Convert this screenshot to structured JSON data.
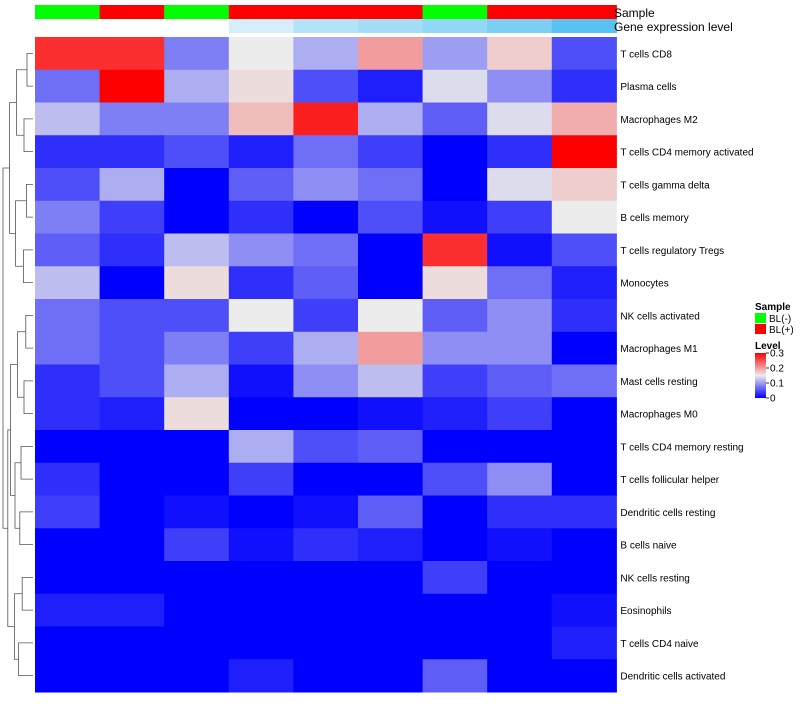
{
  "chart_data": {
    "type": "heatmap",
    "title": "",
    "value_scale": {
      "min": 0,
      "max": 0.3,
      "colors": {
        "low": "#0000ff",
        "mid": "#ececec",
        "high": "#ff0000"
      }
    },
    "annotations": {
      "sample_label": "Sample",
      "gene_label": "Gene expression level",
      "sample_groups": [
        "BL(-)",
        "BL(+)",
        "BL(-)",
        "BL(+)",
        "BL(+)",
        "BL(+)",
        "BL(-)",
        "BL(+)",
        "BL(+)"
      ],
      "gene_expression_colors": [
        "#ffffff",
        "#ffffff",
        "#ffffff",
        "#d5eef9",
        "#b3e3f7",
        "#a4ddf6",
        "#92d7f5",
        "#7ccff4",
        "#58c3f1"
      ]
    },
    "legend": {
      "position": "right",
      "sample": {
        "title": "Sample",
        "entries": [
          {
            "label": "BL(-)",
            "color": "#00ff00"
          },
          {
            "label": "BL(+)",
            "color": "#ff0000"
          }
        ]
      },
      "level": {
        "title": "Level",
        "ticks": [
          "0",
          "0.1",
          "0.2",
          "0.3"
        ],
        "tick_values": [
          0,
          0.1,
          0.2,
          0.3
        ]
      }
    },
    "rows": [
      "T cells CD8",
      "Plasma cells",
      "Macrophages M2",
      "T cells CD4 memory activated",
      "T cells gamma delta",
      "B cells memory",
      "T cells regulatory  Tregs",
      "Monocytes",
      "NK cells activated",
      "Macrophages M1",
      "Mast cells resting",
      "Macrophages M0",
      "T cells CD4 memory resting",
      "T cells follicular helper",
      "Dendritic cells resting",
      "B cells naive",
      "NK cells resting",
      "Eosinophils",
      "T cells CD4 naive",
      "Dendritic cells activated"
    ],
    "values": [
      [
        0.27,
        0.27,
        0.08,
        0.15,
        0.11,
        0.2,
        0.1,
        0.17,
        0.05
      ],
      [
        0.07,
        0.3,
        0.11,
        0.16,
        0.05,
        0.02,
        0.14,
        0.09,
        0.03
      ],
      [
        0.12,
        0.08,
        0.08,
        0.18,
        0.28,
        0.11,
        0.06,
        0.14,
        0.19
      ],
      [
        0.03,
        0.03,
        0.05,
        0.02,
        0.07,
        0.04,
        0.0,
        0.03,
        0.3
      ],
      [
        0.05,
        0.11,
        0.0,
        0.06,
        0.09,
        0.07,
        0.0,
        0.14,
        0.17
      ],
      [
        0.08,
        0.04,
        0.0,
        0.03,
        0.0,
        0.05,
        0.01,
        0.04,
        0.15
      ],
      [
        0.06,
        0.03,
        0.12,
        0.09,
        0.07,
        0.0,
        0.27,
        0.01,
        0.05
      ],
      [
        0.12,
        0.0,
        0.16,
        0.03,
        0.06,
        0.0,
        0.16,
        0.07,
        0.02
      ],
      [
        0.07,
        0.05,
        0.05,
        0.15,
        0.04,
        0.15,
        0.06,
        0.09,
        0.03
      ],
      [
        0.07,
        0.05,
        0.08,
        0.04,
        0.11,
        0.2,
        0.09,
        0.09,
        0.0
      ],
      [
        0.03,
        0.05,
        0.11,
        0.01,
        0.09,
        0.12,
        0.04,
        0.06,
        0.07
      ],
      [
        0.03,
        0.02,
        0.16,
        0.0,
        0.0,
        0.01,
        0.02,
        0.04,
        0.0
      ],
      [
        0.0,
        0.0,
        0.0,
        0.11,
        0.05,
        0.06,
        0.0,
        0.0,
        0.0
      ],
      [
        0.03,
        0.0,
        0.0,
        0.04,
        0.0,
        0.0,
        0.05,
        0.09,
        0.0
      ],
      [
        0.04,
        0.0,
        0.01,
        0.0,
        0.01,
        0.06,
        0.0,
        0.03,
        0.03
      ],
      [
        0.0,
        0.0,
        0.04,
        0.01,
        0.03,
        0.02,
        0.0,
        0.01,
        0.0
      ],
      [
        0.0,
        0.0,
        0.0,
        0.0,
        0.0,
        0.0,
        0.04,
        0.0,
        0.0
      ],
      [
        0.02,
        0.02,
        0.0,
        0.0,
        0.0,
        0.0,
        0.0,
        0.0,
        0.01
      ],
      [
        0.0,
        0.0,
        0.0,
        0.0,
        0.0,
        0.0,
        0.0,
        0.0,
        0.02
      ],
      [
        0.0,
        0.0,
        0.0,
        0.02,
        0.0,
        0.0,
        0.06,
        0.0,
        0.0
      ]
    ]
  }
}
